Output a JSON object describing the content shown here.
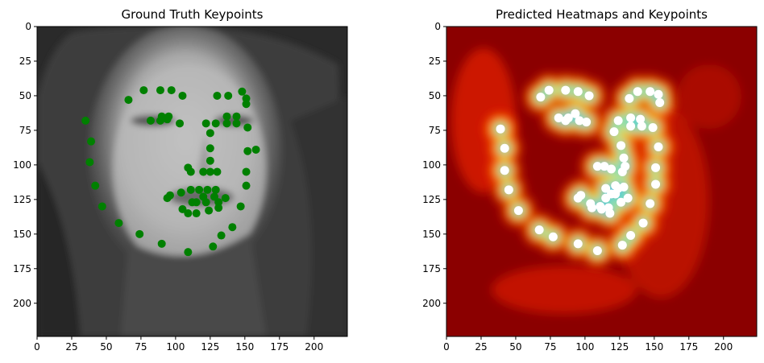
{
  "chart_data": [
    {
      "type": "scatter",
      "title": "Ground Truth Keypoints",
      "xlabel": "",
      "ylabel": "",
      "xlim": [
        0,
        224
      ],
      "ylim": [
        224,
        0
      ],
      "xticks": [
        "0",
        "25",
        "50",
        "75",
        "100",
        "125",
        "150",
        "175",
        "200"
      ],
      "yticks": [
        "0",
        "25",
        "50",
        "75",
        "100",
        "125",
        "150",
        "175",
        "200"
      ],
      "background": "grayscale face photo",
      "marker_color": "#008000",
      "points": [
        [
          35,
          68
        ],
        [
          39,
          83
        ],
        [
          38,
          98
        ],
        [
          42,
          115
        ],
        [
          47,
          130
        ],
        [
          59,
          142
        ],
        [
          74,
          150
        ],
        [
          90,
          157
        ],
        [
          109,
          163
        ],
        [
          127,
          159
        ],
        [
          133,
          151
        ],
        [
          141,
          145
        ],
        [
          147,
          130
        ],
        [
          151,
          115
        ],
        [
          151,
          105
        ],
        [
          152,
          90
        ],
        [
          158,
          89
        ],
        [
          66,
          53
        ],
        [
          77,
          46
        ],
        [
          89,
          46
        ],
        [
          97,
          46
        ],
        [
          105,
          50
        ],
        [
          130,
          50
        ],
        [
          138,
          50
        ],
        [
          148,
          47
        ],
        [
          151,
          52
        ],
        [
          151,
          56
        ],
        [
          82,
          68
        ],
        [
          89,
          68
        ],
        [
          90,
          65
        ],
        [
          94,
          67
        ],
        [
          95,
          65
        ],
        [
          103,
          70
        ],
        [
          122,
          70
        ],
        [
          129,
          70
        ],
        [
          137,
          65
        ],
        [
          137,
          70
        ],
        [
          144,
          65
        ],
        [
          144,
          70
        ],
        [
          152,
          73
        ],
        [
          125,
          77
        ],
        [
          125,
          88
        ],
        [
          125,
          97
        ],
        [
          125,
          105
        ],
        [
          120,
          105
        ],
        [
          130,
          105
        ],
        [
          109,
          102
        ],
        [
          111,
          105
        ],
        [
          94,
          124
        ],
        [
          96,
          122
        ],
        [
          104,
          120
        ],
        [
          111,
          118
        ],
        [
          117,
          118
        ],
        [
          123,
          118
        ],
        [
          129,
          118
        ],
        [
          136,
          124
        ],
        [
          105,
          132
        ],
        [
          112,
          127
        ],
        [
          115,
          127
        ],
        [
          122,
          127
        ],
        [
          131,
          127
        ],
        [
          124,
          133
        ],
        [
          115,
          135
        ],
        [
          109,
          135
        ],
        [
          131,
          131
        ],
        [
          120,
          123
        ],
        [
          128,
          123
        ]
      ]
    },
    {
      "type": "heatmap",
      "title": "Predicted Heatmaps and Keypoints",
      "xlabel": "",
      "ylabel": "",
      "xlim": [
        0,
        224
      ],
      "ylim": [
        224,
        0
      ],
      "xticks": [
        "0",
        "25",
        "50",
        "75",
        "100",
        "125",
        "150",
        "175",
        "200"
      ],
      "yticks": [
        "0",
        "25",
        "50",
        "75",
        "100",
        "125",
        "150",
        "175",
        "200"
      ],
      "colormap": "jet",
      "marker_color": "#ffffff",
      "points": [
        [
          39,
          74
        ],
        [
          42,
          88
        ],
        [
          42,
          104
        ],
        [
          45,
          118
        ],
        [
          52,
          133
        ],
        [
          67,
          147
        ],
        [
          77,
          152
        ],
        [
          95,
          157
        ],
        [
          109,
          162
        ],
        [
          127,
          158
        ],
        [
          133,
          151
        ],
        [
          142,
          142
        ],
        [
          147,
          128
        ],
        [
          151,
          114
        ],
        [
          151,
          102
        ],
        [
          153,
          87
        ],
        [
          68,
          51
        ],
        [
          74,
          46
        ],
        [
          86,
          46
        ],
        [
          95,
          47
        ],
        [
          103,
          50
        ],
        [
          132,
          52
        ],
        [
          138,
          47
        ],
        [
          147,
          47
        ],
        [
          153,
          49
        ],
        [
          154,
          55
        ],
        [
          81,
          66
        ],
        [
          86,
          68
        ],
        [
          88,
          66
        ],
        [
          93,
          63
        ],
        [
          96,
          68
        ],
        [
          101,
          69
        ],
        [
          124,
          68
        ],
        [
          121,
          76
        ],
        [
          133,
          66
        ],
        [
          133,
          72
        ],
        [
          140,
          67
        ],
        [
          141,
          72
        ],
        [
          149,
          73
        ],
        [
          126,
          86
        ],
        [
          128,
          95
        ],
        [
          129,
          101
        ],
        [
          127,
          105
        ],
        [
          119,
          103
        ],
        [
          109,
          101
        ],
        [
          114,
          101
        ],
        [
          95,
          124
        ],
        [
          97,
          122
        ],
        [
          104,
          128
        ],
        [
          111,
          130
        ],
        [
          115,
          124
        ],
        [
          119,
          121
        ],
        [
          122,
          115
        ],
        [
          124,
          117
        ],
        [
          128,
          116
        ],
        [
          131,
          124
        ],
        [
          126,
          127
        ],
        [
          117,
          131
        ],
        [
          112,
          132
        ],
        [
          105,
          131
        ],
        [
          115,
          117
        ],
        [
          122,
          121
        ],
        [
          118,
          135
        ]
      ]
    }
  ]
}
